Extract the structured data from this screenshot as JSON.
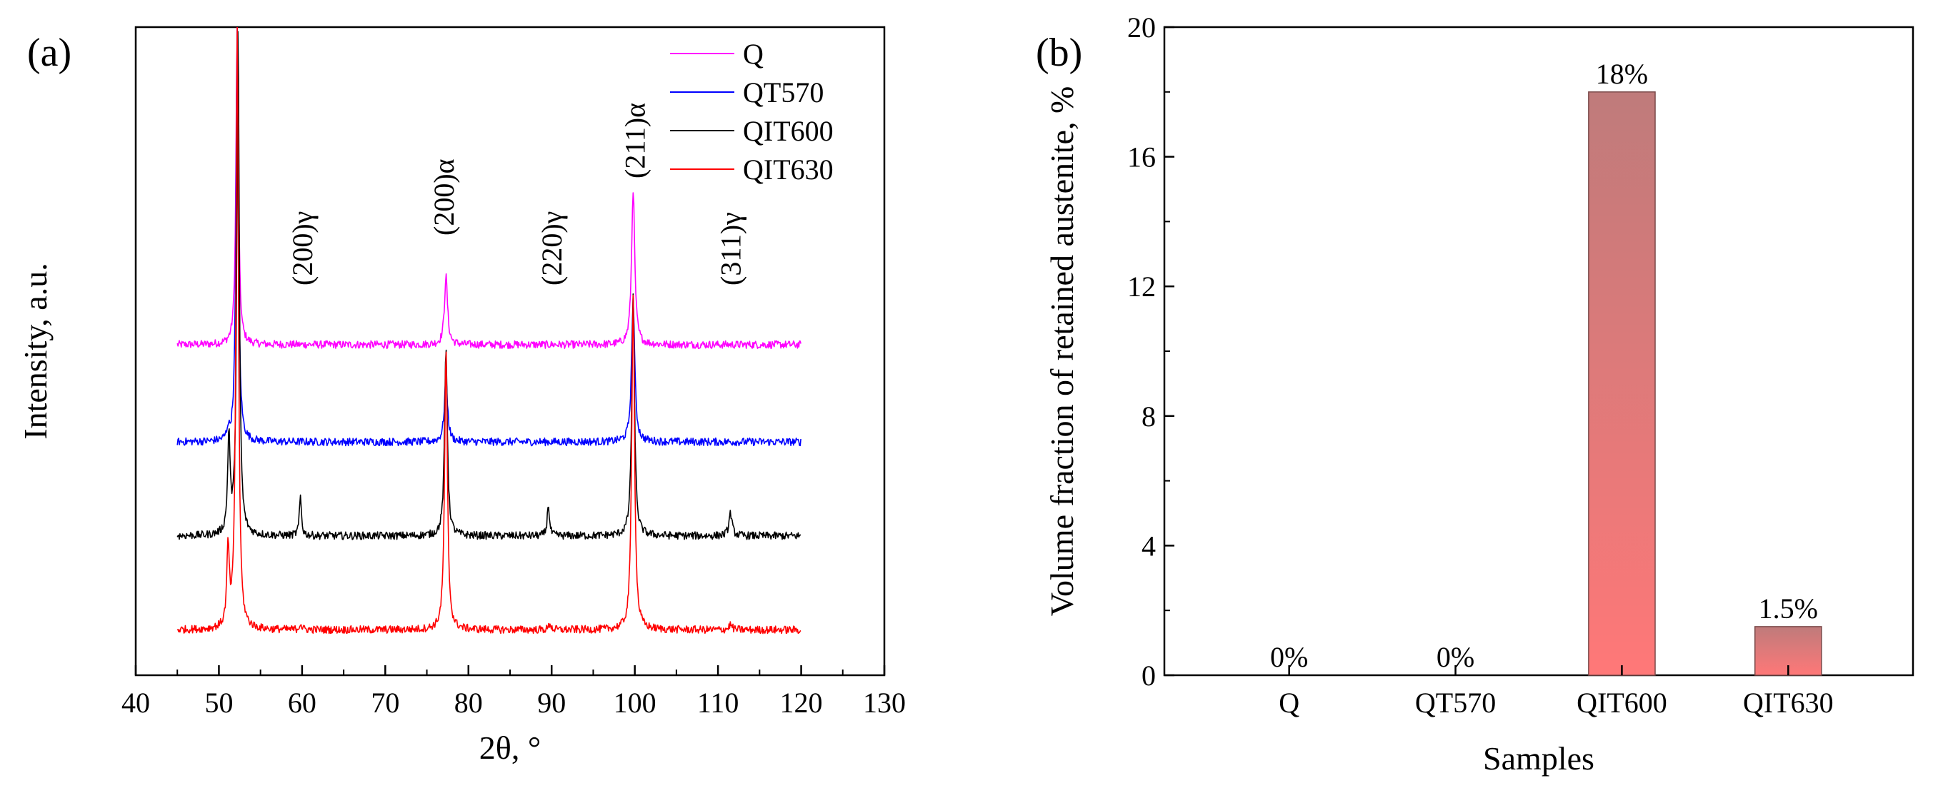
{
  "chart_data": [
    {
      "type": "line",
      "panel_label": "(a)",
      "xlabel": "2θ, °",
      "ylabel": "Intensity, a.u.",
      "xlim": [
        40,
        130
      ],
      "xticks": [
        "40",
        "50",
        "60",
        "70",
        "80",
        "90",
        "100",
        "110",
        "120",
        "130"
      ],
      "y_ticks_shown": false,
      "legend": {
        "placement": "top-right",
        "entries": [
          {
            "name": "Q",
            "color": "#ff00ff"
          },
          {
            "name": "QT570",
            "color": "#0000ff"
          },
          {
            "name": "QIT600",
            "color": "#000000"
          },
          {
            "name": "QIT630",
            "color": "#ff0000"
          }
        ]
      },
      "peak_annotations": [
        {
          "label": "(200)γ",
          "x": 60
        },
        {
          "label": "(200)α",
          "x": 77
        },
        {
          "label": "(220)γ",
          "x": 90
        },
        {
          "label": "(211)α",
          "x": 100
        },
        {
          "label": "(311)γ",
          "x": 111.5
        }
      ],
      "series": [
        {
          "name": "Q",
          "color": "#ff00ff",
          "baseline": 0.51,
          "x_range": [
            45,
            120
          ],
          "peaks": [
            {
              "x": 52.2,
              "height": 0.49,
              "width": 0.35
            },
            {
              "x": 77.3,
              "height": 0.105,
              "width": 0.45
            },
            {
              "x": 99.8,
              "height": 0.24,
              "width": 0.45
            }
          ]
        },
        {
          "name": "QT570",
          "color": "#0000ff",
          "baseline": 0.36,
          "x_range": [
            45,
            120
          ],
          "peaks": [
            {
              "x": 51.1,
              "height": 0.015,
              "width": 0.3
            },
            {
              "x": 52.2,
              "height": 0.64,
              "width": 0.35
            },
            {
              "x": 77.3,
              "height": 0.1,
              "width": 0.45
            },
            {
              "x": 99.8,
              "height": 0.22,
              "width": 0.45
            }
          ]
        },
        {
          "name": "QIT600",
          "color": "#000000",
          "baseline": 0.215,
          "x_range": [
            45,
            120
          ],
          "peaks": [
            {
              "x": 51.2,
              "height": 0.15,
              "width": 0.35
            },
            {
              "x": 52.3,
              "height": 0.78,
              "width": 0.35
            },
            {
              "x": 59.8,
              "height": 0.06,
              "width": 0.3
            },
            {
              "x": 77.3,
              "height": 0.29,
              "width": 0.4
            },
            {
              "x": 89.6,
              "height": 0.05,
              "width": 0.3
            },
            {
              "x": 99.8,
              "height": 0.37,
              "width": 0.4
            },
            {
              "x": 111.5,
              "height": 0.035,
              "width": 0.45
            }
          ]
        },
        {
          "name": "QIT630",
          "color": "#ff0000",
          "baseline": 0.07,
          "x_range": [
            45,
            120
          ],
          "peaks": [
            {
              "x": 51.1,
              "height": 0.12,
              "width": 0.35
            },
            {
              "x": 52.2,
              "height": 0.93,
              "width": 0.35
            },
            {
              "x": 59.8,
              "height": 0.01,
              "width": 0.3
            },
            {
              "x": 77.3,
              "height": 0.43,
              "width": 0.4
            },
            {
              "x": 89.8,
              "height": 0.01,
              "width": 0.3
            },
            {
              "x": 99.8,
              "height": 0.52,
              "width": 0.4
            },
            {
              "x": 111.5,
              "height": 0.008,
              "width": 0.45
            }
          ]
        }
      ]
    },
    {
      "type": "bar",
      "panel_label": "(b)",
      "xlabel": "Samples",
      "ylabel": "Volume fraction of retained austenite, %",
      "ylim": [
        0,
        20
      ],
      "yticks": [
        "0",
        "4",
        "8",
        "12",
        "16",
        "20"
      ],
      "categories": [
        "Q",
        "QT570",
        "QIT600",
        "QIT630"
      ],
      "values": [
        0,
        0,
        18,
        1.5
      ],
      "data_labels": [
        "0%",
        "0%",
        "18%",
        "1.5%"
      ],
      "bar_gradient": {
        "top": "#bf7b7b",
        "bottom": "#ff7878"
      },
      "grid": false
    }
  ]
}
